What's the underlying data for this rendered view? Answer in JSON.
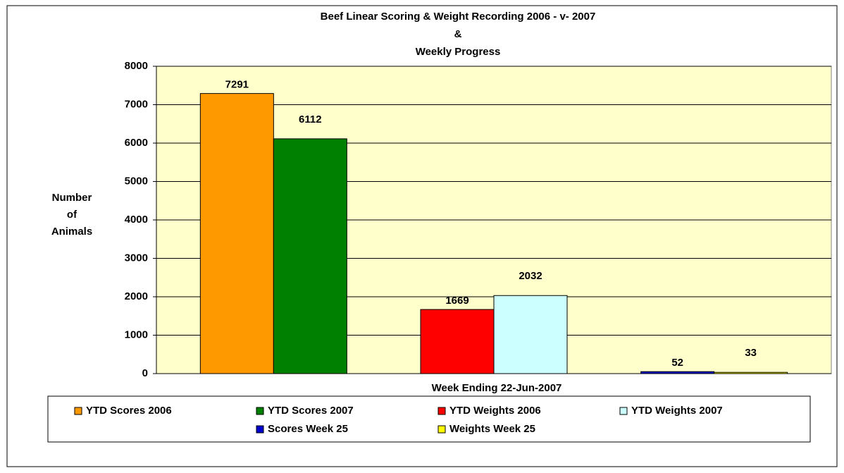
{
  "chart_data": {
    "type": "bar",
    "title": [
      "Beef Linear Scoring & Weight Recording 2006 - v- 2007",
      "&",
      "Weekly Progress"
    ],
    "y_label": [
      "Number",
      "of",
      "Animals"
    ],
    "x_label": "Week Ending 22-Jun-2007",
    "categories": [
      null,
      null,
      null
    ],
    "series": [
      {
        "name": "YTD Scores 2006",
        "color": "#ff9900",
        "values": [
          7291,
          null,
          null
        ]
      },
      {
        "name": "YTD Scores 2007",
        "color": "#008000",
        "values": [
          6112,
          null,
          null
        ]
      },
      {
        "name": "YTD Weights 2006",
        "color": "#ff0000",
        "values": [
          null,
          1669,
          null
        ]
      },
      {
        "name": "YTD Weights 2007",
        "color": "#ccffff",
        "values": [
          null,
          2032,
          null
        ]
      },
      {
        "name": "Scores Week 25",
        "color": "#0000cc",
        "values": [
          null,
          null,
          52
        ]
      },
      {
        "name": "Weights Week 25",
        "color": "#ffff00",
        "values": [
          null,
          null,
          33
        ]
      }
    ],
    "ylim": [
      0,
      8000
    ],
    "yticks": [
      0,
      1000,
      2000,
      3000,
      4000,
      5000,
      6000,
      7000,
      8000
    ],
    "grid": true,
    "legend": "bottom",
    "plot_background": "#ffffcc"
  }
}
